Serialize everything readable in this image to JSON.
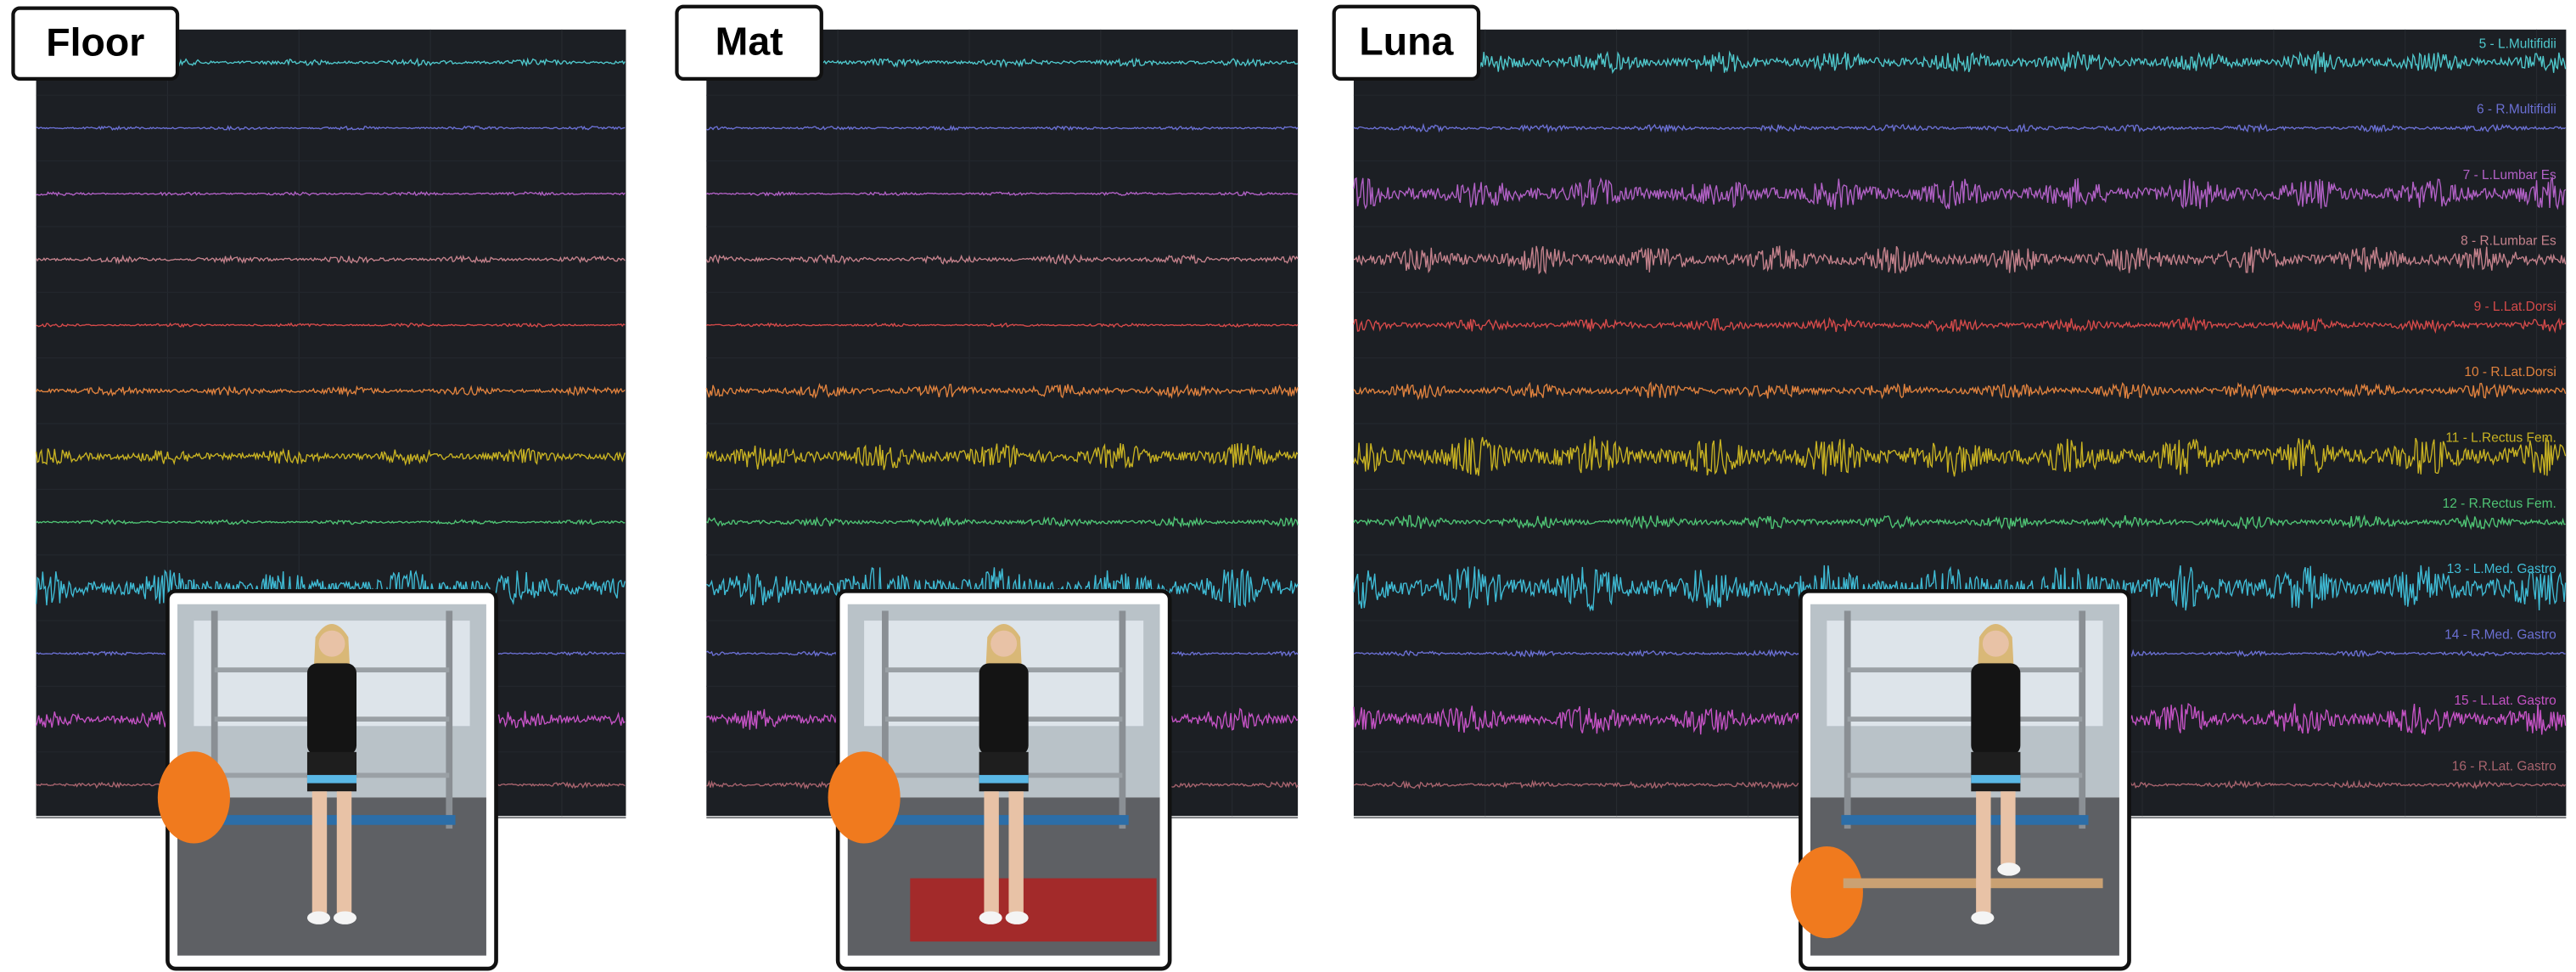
{
  "panels": [
    {
      "title": "Floor"
    },
    {
      "title": "Mat"
    },
    {
      "title": "Luna",
      "channels": [
        "5 - L.Multifidii",
        "6 - R.Multifidii",
        "7 - L.Lumbar Es",
        "8 - R.Lumbar Es",
        "9 - L.Lat.Dorsi",
        "10 - R.Lat.Dorsi",
        "11 - L.Rectus Fem.",
        "12 - R.Rectus Fem.",
        "13 - L.Med. Gastro",
        "14 - R.Med. Gastro",
        "15 - L.Lat. Gastro",
        "16 - R.Lat. Gastro"
      ]
    }
  ]
}
